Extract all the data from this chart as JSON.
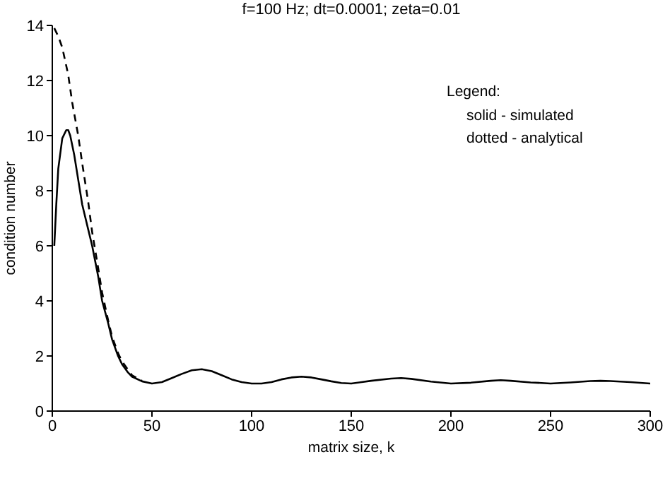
{
  "chart_data": {
    "type": "line",
    "title": "f=100 Hz; dt=0.0001; zeta=0.01",
    "xlabel": "matrix size, k",
    "ylabel": "condition number",
    "annotations": [
      "Legend:",
      "solid - simulated",
      "dotted - analytical"
    ],
    "xlim": [
      0,
      300
    ],
    "xticks": [
      0,
      50,
      100,
      150,
      200,
      250,
      300
    ],
    "ylim": [
      0,
      14
    ],
    "yticks": [
      0,
      2,
      4,
      6,
      8,
      10,
      12,
      14
    ],
    "grid": false,
    "legend": false,
    "marker": "none",
    "series": [
      {
        "color": "#000000",
        "line_style": "dashed",
        "x": [
          1,
          3,
          5,
          8,
          10,
          13,
          15,
          18,
          20,
          23,
          25,
          28,
          30,
          33,
          35,
          38,
          40,
          45
        ],
        "values": [
          13.9,
          13.6,
          13.2,
          12.2,
          11.2,
          10,
          9,
          7.6,
          6.5,
          5.2,
          4.3,
          3.3,
          2.7,
          2.1,
          1.8,
          1.5,
          1.3,
          1.1
        ]
      },
      {
        "color": "#000000",
        "line_style": "solid",
        "x": [
          1,
          2,
          3,
          5,
          7,
          8,
          9,
          11,
          13,
          15,
          18,
          20,
          23,
          25,
          28,
          30,
          33,
          35,
          38,
          40,
          45,
          50,
          55,
          60,
          65,
          70,
          75,
          80,
          85,
          90,
          95,
          100,
          105,
          110,
          115,
          120,
          125,
          130,
          135,
          140,
          145,
          150,
          160,
          170,
          175,
          180,
          190,
          200,
          210,
          220,
          225,
          230,
          240,
          250,
          260,
          270,
          275,
          280,
          290,
          300
        ],
        "values": [
          6,
          7.5,
          8.8,
          9.9,
          10.2,
          10.2,
          10,
          9.3,
          8.4,
          7.5,
          6.6,
          6,
          4.9,
          4,
          3.2,
          2.6,
          2,
          1.7,
          1.4,
          1.25,
          1.08,
          1,
          1.05,
          1.2,
          1.35,
          1.48,
          1.52,
          1.45,
          1.3,
          1.15,
          1.05,
          1,
          1,
          1.05,
          1.15,
          1.22,
          1.25,
          1.22,
          1.15,
          1.08,
          1.02,
          1,
          1.1,
          1.18,
          1.2,
          1.17,
          1.07,
          1,
          1.03,
          1.1,
          1.12,
          1.1,
          1.04,
          1,
          1.04,
          1.09,
          1.1,
          1.09,
          1.05,
          1
        ]
      }
    ]
  }
}
